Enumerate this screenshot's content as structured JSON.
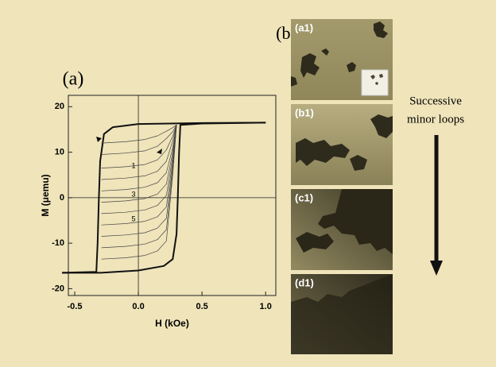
{
  "chart_data": {
    "type": "line",
    "panel_label": "(a)",
    "xlabel": "H (kOe)",
    "ylabel": "M (μemu)",
    "xlim": [
      -0.55,
      1.08
    ],
    "ylim": [
      -21.5,
      22.5
    ],
    "xticks": [
      -0.5,
      {
        "value": 0,
        "label": "0.0"
      },
      0.5,
      {
        "value": 1,
        "label": "1.0"
      }
    ],
    "yticks": [
      20,
      10,
      0,
      -10,
      -20
    ],
    "zero_lines": true,
    "annotations": [
      "1",
      "3",
      "5"
    ],
    "series": [
      {
        "color": "#111111",
        "width": 2,
        "x": [
          1.0,
          0.5,
          0.0,
          -0.2,
          -0.27,
          -0.3,
          -0.31,
          -0.32,
          -0.33,
          -0.6
        ],
        "values": [
          16.5,
          16.4,
          16.2,
          15.5,
          14,
          8,
          0,
          -10,
          -16.3,
          -16.5
        ]
      },
      {
        "color": "#111111",
        "width": 2,
        "x": [
          -0.6,
          -0.3,
          0.0,
          0.2,
          0.27,
          0.3,
          0.31,
          0.32,
          0.33,
          0.5,
          1.0
        ],
        "values": [
          -16.5,
          -16.5,
          -16,
          -15,
          -13.5,
          -8,
          0,
          10,
          16,
          16.3,
          16.5
        ]
      },
      {
        "color": "#444444",
        "width": 0.7,
        "x": [
          -0.29,
          -0.1,
          0.05,
          0.15,
          0.22,
          0.27,
          0.3
        ],
        "values": [
          12,
          12.3,
          12.8,
          13.6,
          14.6,
          15.4,
          16
        ]
      },
      {
        "color": "#444444",
        "width": 0.7,
        "x": [
          -0.29,
          -0.1,
          0.05,
          0.15,
          0.22,
          0.27,
          0.3
        ],
        "values": [
          9.5,
          9.8,
          10.3,
          11.3,
          13,
          14.5,
          16
        ]
      },
      {
        "color": "#444444",
        "width": 0.7,
        "x": [
          -0.29,
          -0.1,
          0.05,
          0.15,
          0.22,
          0.27,
          0.3
        ],
        "values": [
          6.5,
          6.8,
          7.3,
          8.3,
          10.5,
          13.5,
          16
        ]
      },
      {
        "color": "#444444",
        "width": 0.7,
        "x": [
          -0.29,
          -0.1,
          0.05,
          0.15,
          0.22,
          0.27,
          0.3
        ],
        "values": [
          4,
          4.3,
          4.8,
          5.8,
          8,
          12.5,
          16
        ]
      },
      {
        "color": "#444444",
        "width": 0.7,
        "x": [
          -0.29,
          -0.1,
          0.05,
          0.15,
          0.22,
          0.27,
          0.3
        ],
        "values": [
          1.5,
          1.8,
          2.3,
          3.3,
          5.5,
          11,
          16
        ]
      },
      {
        "color": "#444444",
        "width": 0.7,
        "x": [
          -0.29,
          -0.1,
          0.05,
          0.15,
          0.22,
          0.27,
          0.3
        ],
        "values": [
          -1,
          -0.7,
          -0.2,
          0.8,
          3,
          10,
          16
        ]
      },
      {
        "color": "#444444",
        "width": 0.7,
        "x": [
          -0.29,
          -0.1,
          0.05,
          0.15,
          0.22,
          0.27,
          0.3
        ],
        "values": [
          -3.5,
          -3.2,
          -2.7,
          -1.7,
          0.5,
          9,
          16
        ]
      },
      {
        "color": "#444444",
        "width": 0.7,
        "x": [
          -0.29,
          -0.1,
          0.05,
          0.15,
          0.22,
          0.27,
          0.3
        ],
        "values": [
          -6,
          -5.7,
          -5.2,
          -4.2,
          -2,
          8,
          16
        ]
      },
      {
        "color": "#444444",
        "width": 0.7,
        "x": [
          -0.29,
          -0.1,
          0.05,
          0.15,
          0.22,
          0.27,
          0.3
        ],
        "values": [
          -8.5,
          -8.2,
          -7.7,
          -6.7,
          -4.5,
          7,
          16
        ]
      },
      {
        "color": "#444444",
        "width": 0.7,
        "x": [
          -0.29,
          -0.1,
          0.05,
          0.15,
          0.22,
          0.27,
          0.3
        ],
        "values": [
          -11,
          -10.7,
          -10.2,
          -9.2,
          -7,
          6,
          16
        ]
      },
      {
        "color": "#444444",
        "width": 0.7,
        "x": [
          -0.29,
          -0.1,
          0.05,
          0.15,
          0.22,
          0.27,
          0.3
        ],
        "values": [
          -13.5,
          -13.2,
          -12.7,
          -11.7,
          -9.5,
          5,
          16
        ]
      }
    ]
  },
  "images_panel": {
    "panel_label": "(b)",
    "frames": [
      "(a1)",
      "(b1)",
      "(c1)",
      "(d1)"
    ],
    "caption": [
      "Successive",
      "minor loops"
    ]
  }
}
